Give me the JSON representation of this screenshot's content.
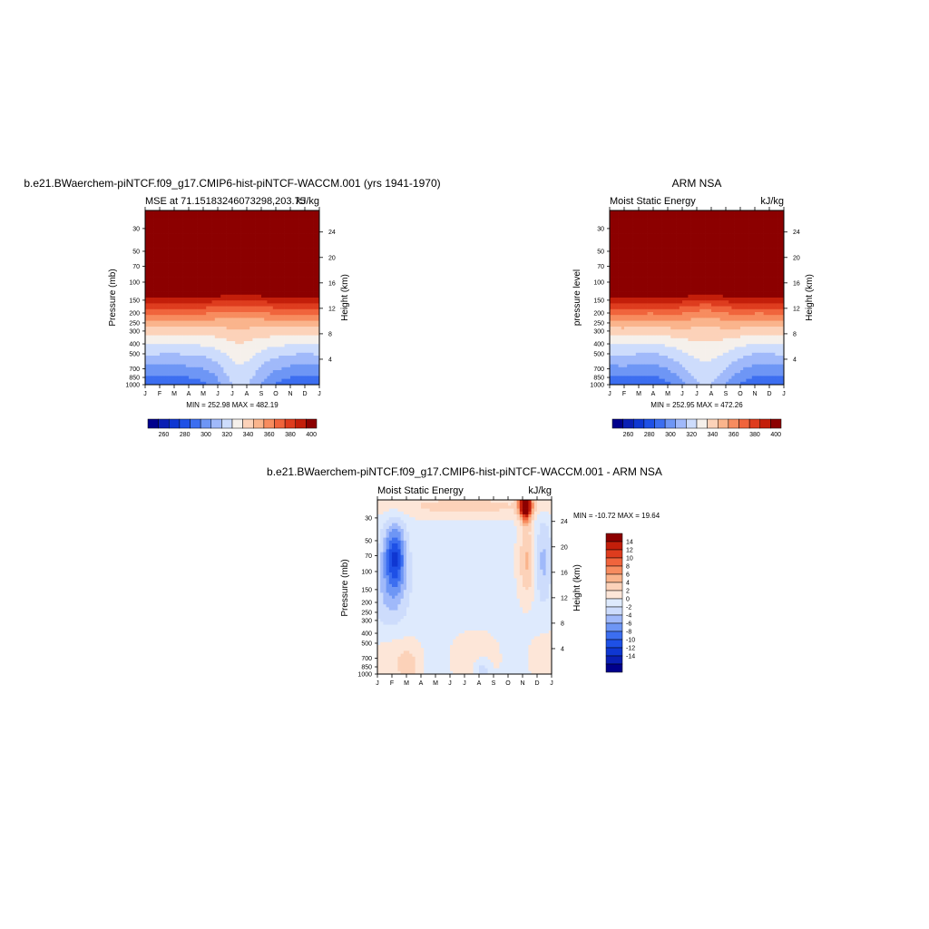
{
  "chart_data": [
    {
      "type": "heatmap",
      "title": "b.e21.BWaerchem-piNTCF.f09_g17.CMIP6-hist-piNTCF-WACCM.001 (yrs 1941-1970)",
      "left_label": "MSE at 71.15183246073298,203.75",
      "right_label": "kJ/kg",
      "ylabel": "Pressure (mb)",
      "ylabel_right": "Height (km)",
      "x_ticks": [
        "J",
        "F",
        "M",
        "A",
        "M",
        "J",
        "J",
        "A",
        "S",
        "O",
        "N",
        "D",
        "J"
      ],
      "y_ticks": [
        30,
        50,
        70,
        100,
        150,
        200,
        250,
        300,
        400,
        500,
        700,
        850,
        1000
      ],
      "y_ticks_right": [
        24,
        20,
        16,
        12,
        8,
        4
      ],
      "ylim": [
        1000,
        20
      ],
      "log_scale_y": true,
      "stats": "MIN = 252.98 MAX = 482.19",
      "min": 252.98,
      "max": 482.19,
      "colorbar_labels": [
        "260",
        "280",
        "300",
        "320",
        "340",
        "360",
        "380",
        "400"
      ],
      "contour_levels": [
        250,
        260,
        270,
        280,
        290,
        300,
        310,
        320,
        330,
        340,
        350,
        360,
        370,
        380,
        390,
        400
      ]
    },
    {
      "type": "heatmap",
      "title": "ARM NSA",
      "left_label": "Moist Static Energy",
      "right_label": "kJ/kg",
      "ylabel": "pressure level",
      "ylabel_right": "Height (km)",
      "x_ticks": [
        "J",
        "F",
        "M",
        "A",
        "M",
        "J",
        "J",
        "A",
        "S",
        "O",
        "N",
        "D",
        "J"
      ],
      "y_ticks": [
        30,
        50,
        70,
        100,
        150,
        200,
        250,
        300,
        400,
        500,
        700,
        850,
        1000
      ],
      "y_ticks_right": [
        24,
        20,
        16,
        12,
        8,
        4
      ],
      "ylim": [
        1000,
        20
      ],
      "log_scale_y": true,
      "stats": "MIN = 252.95 MAX = 472.26",
      "min": 252.95,
      "max": 472.26,
      "colorbar_labels": [
        "260",
        "280",
        "300",
        "320",
        "340",
        "360",
        "380",
        "400"
      ],
      "contour_levels": [
        250,
        260,
        270,
        280,
        290,
        300,
        310,
        320,
        330,
        340,
        350,
        360,
        370,
        380,
        390,
        400
      ]
    },
    {
      "type": "heatmap",
      "title": "b.e21.BWaerchem-piNTCF.f09_g17.CMIP6-hist-piNTCF-WACCM.001 - ARM NSA",
      "left_label": "Moist Static Energy",
      "right_label": "kJ/kg",
      "ylabel": "Pressure (mb)",
      "ylabel_right": "Height (km)",
      "x_ticks": [
        "J",
        "F",
        "M",
        "A",
        "M",
        "J",
        "J",
        "A",
        "S",
        "O",
        "N",
        "D",
        "J"
      ],
      "y_ticks": [
        30,
        50,
        70,
        100,
        150,
        200,
        250,
        300,
        400,
        500,
        700,
        850,
        1000
      ],
      "y_ticks_right": [
        24,
        20,
        16,
        12,
        8,
        4
      ],
      "ylim": [
        1000,
        20
      ],
      "log_scale_y": true,
      "stats": "MIN = -10.72 MAX =  19.64",
      "min": -10.72,
      "max": 19.64,
      "colorbar_labels": [
        "14",
        "12",
        "10",
        "8",
        "6",
        "4",
        "2",
        "0",
        "-2",
        "-4",
        "-6",
        "-8",
        "-10",
        "-12",
        "-14"
      ],
      "contour_levels": [
        -15,
        -14,
        -12,
        -10,
        -8,
        -6,
        -4,
        -2,
        0,
        2,
        4,
        6,
        8,
        10,
        12,
        14
      ]
    }
  ],
  "colors": {
    "mse_scale": [
      "#00008c",
      "#0a1fb4",
      "#0f37d2",
      "#1e50e6",
      "#3c6ef0",
      "#6e96f5",
      "#a0b9fa",
      "#cddcfc",
      "#f5f0eb",
      "#fcd2b9",
      "#fab48c",
      "#f78c5f",
      "#f0643c",
      "#de3c1e",
      "#c31e0a",
      "#8c0000"
    ],
    "diff_scale": [
      "#00008c",
      "#0a1fb4",
      "#0f37d2",
      "#1e50e6",
      "#3c6ef0",
      "#6e96f5",
      "#a0b9fa",
      "#cddcfc",
      "#deeafd",
      "#fde6d8",
      "#fcd2b9",
      "#fab48c",
      "#f78c5f",
      "#f0643c",
      "#de3c1e",
      "#c31e0a",
      "#8c0000"
    ]
  }
}
